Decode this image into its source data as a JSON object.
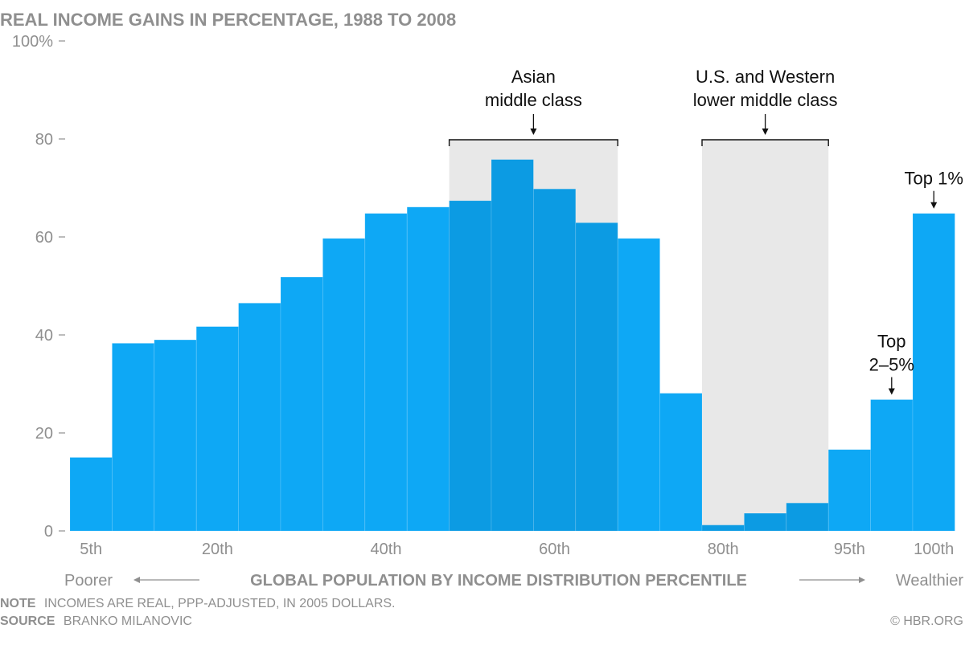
{
  "chart_data": {
    "type": "bar",
    "title": "REAL INCOME GAINS IN PERCENTAGE, 1988 TO 2008",
    "ylim": [
      0,
      100
    ],
    "y_ticks": [
      {
        "value": 0,
        "label": "0"
      },
      {
        "value": 20,
        "label": "20"
      },
      {
        "value": 40,
        "label": "40"
      },
      {
        "value": 60,
        "label": "60"
      },
      {
        "value": 80,
        "label": "80"
      },
      {
        "value": 100,
        "label": "100%"
      }
    ],
    "x_ticks": [
      {
        "index": 0,
        "label": "5th"
      },
      {
        "index": 3,
        "label": "20th"
      },
      {
        "index": 7,
        "label": "40th"
      },
      {
        "index": 11,
        "label": "60th"
      },
      {
        "index": 15,
        "label": "80th"
      },
      {
        "index": 18,
        "label": "95th"
      },
      {
        "index": 20,
        "label": "100th"
      }
    ],
    "values": [
      15,
      38.3,
      39,
      41.7,
      46.5,
      51.8,
      59.7,
      64.8,
      66.1,
      67.4,
      75.8,
      69.8,
      62.9,
      59.7,
      28.1,
      1.2,
      3.6,
      5.7,
      16.6,
      26.8,
      64.8
    ],
    "highlight_indices": [
      9,
      10,
      11,
      12,
      15,
      16,
      17
    ],
    "colors": {
      "bar": "#0ea8f5",
      "bar_highlight": "#0c9be3",
      "shade": "#e8e8e8",
      "text": "#8f8f8f",
      "annotation": "#111111"
    },
    "regions": [
      {
        "start_index": 9,
        "end_index": 12,
        "label_lines": [
          "Asian",
          "middle class"
        ]
      },
      {
        "start_index": 15,
        "end_index": 17,
        "label_lines": [
          "U.S. and Western",
          "lower middle class"
        ]
      }
    ],
    "point_annotations": [
      {
        "index": 19,
        "label_lines": [
          "Top",
          "2–5%"
        ]
      },
      {
        "index": 20,
        "label_lines": [
          "Top 1%"
        ]
      }
    ],
    "xlabel": "GLOBAL POPULATION BY INCOME DISTRIBUTION PERCENTILE",
    "x_left_label": "Poorer",
    "x_right_label": "Wealthier"
  },
  "footer": {
    "note_label": "NOTE",
    "note_text": "INCOMES ARE REAL, PPP-ADJUSTED, IN 2005 DOLLARS.",
    "source_label": "SOURCE",
    "source_text": "BRANKO MILANOVIC",
    "credit": "© HBR.ORG"
  }
}
